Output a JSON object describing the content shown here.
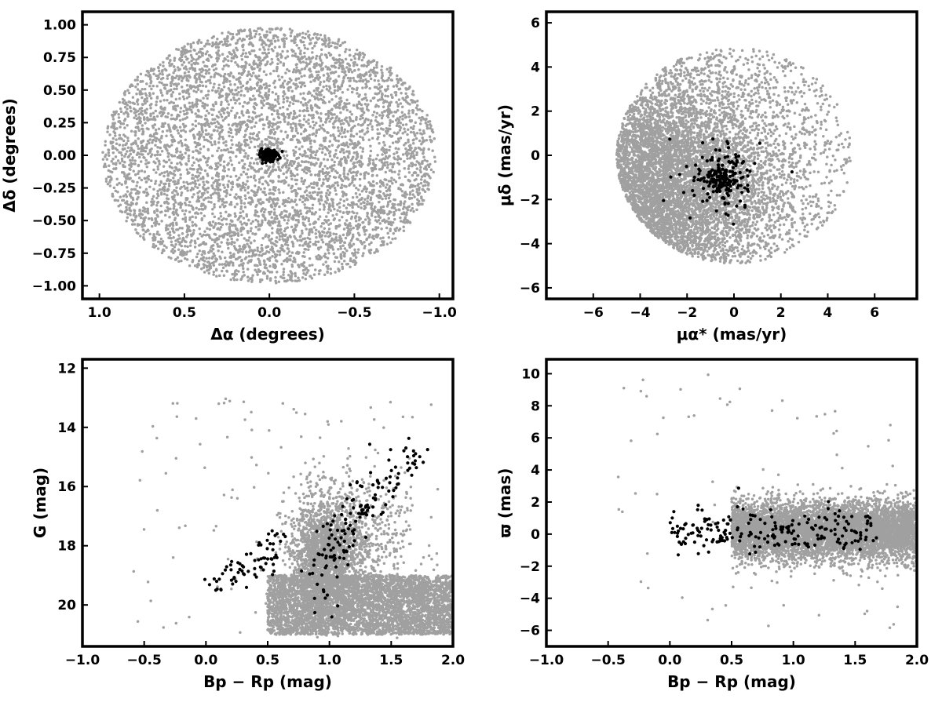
{
  "colors": {
    "field": "#a0a0a0",
    "member": "#000000",
    "frame": "#000000"
  },
  "chart_data": [
    {
      "id": "spatial",
      "type": "scatter",
      "xlabel": "Δα (degrees)",
      "ylabel": "Δδ (degrees)",
      "xlim": [
        1.1,
        -1.08
      ],
      "ylim": [
        -1.1,
        1.1
      ],
      "x_inverted": true,
      "xticks": [
        1.0,
        0.5,
        0.0,
        -0.5,
        -1.0
      ],
      "xtick_labels": [
        "1.0",
        "0.5",
        "0.0",
        "−0.5",
        "−1.0"
      ],
      "yticks": [
        -1.0,
        -0.75,
        -0.5,
        -0.25,
        0.0,
        0.25,
        0.5,
        0.75,
        1.0
      ],
      "ytick_labels": [
        "−1.00",
        "−0.75",
        "−0.50",
        "−0.25",
        "0.00",
        "0.25",
        "0.50",
        "0.75",
        "1.00"
      ],
      "series": [
        {
          "role": "field",
          "distribution": "uniform-disk",
          "center": [
            0.0,
            0.0
          ],
          "radius": [
            0.98,
            0.98
          ],
          "count": 5500
        },
        {
          "role": "member",
          "distribution": "gaussian",
          "center": [
            0.0,
            0.0
          ],
          "sigma": [
            0.025,
            0.018
          ],
          "count": 180
        }
      ]
    },
    {
      "id": "proper-motion",
      "type": "scatter",
      "xlabel": "μα* (mas/yr)",
      "ylabel": "μδ (mas/yr)",
      "xlim": [
        -8.0,
        7.8
      ],
      "ylim": [
        -6.5,
        6.5
      ],
      "xticks": [
        -6,
        -4,
        -2,
        0,
        2,
        4,
        6
      ],
      "xtick_labels": [
        "−6",
        "−4",
        "−2",
        "0",
        "2",
        "4",
        "6"
      ],
      "yticks": [
        -6,
        -4,
        -2,
        0,
        2,
        4,
        6
      ],
      "ytick_labels": [
        "−6",
        "−4",
        "−2",
        "0",
        "2",
        "4",
        "6"
      ],
      "series": [
        {
          "role": "field",
          "distribution": "skewed-disk",
          "center": [
            0.0,
            0.0
          ],
          "radius": [
            5.0,
            4.9
          ],
          "dense_center": [
            -3.5,
            -1.5
          ],
          "count": 6500
        },
        {
          "role": "member",
          "distribution": "gaussian",
          "center": [
            -0.5,
            -1.1
          ],
          "sigma": [
            0.35,
            0.35
          ],
          "count": 120
        },
        {
          "role": "member",
          "distribution": "gaussian",
          "center": [
            -0.5,
            -1.0
          ],
          "sigma": [
            0.9,
            0.9
          ],
          "count": 90
        }
      ]
    },
    {
      "id": "cmd",
      "type": "scatter",
      "xlabel": "Bp − Rp (mag)",
      "ylabel": "G (mag)",
      "xlim": [
        -1.0,
        2.0
      ],
      "ylim": [
        21.4,
        11.7
      ],
      "y_inverted": true,
      "xticks": [
        -1.0,
        -0.5,
        0.0,
        0.5,
        1.0,
        1.5,
        2.0
      ],
      "xtick_labels": [
        "−1.0",
        "−0.5",
        "0.0",
        "0.5",
        "1.0",
        "1.5",
        "2.0"
      ],
      "yticks": [
        12,
        14,
        16,
        18,
        20
      ],
      "ytick_labels": [
        "12",
        "14",
        "16",
        "18",
        "20"
      ],
      "series": [
        {
          "role": "field",
          "distribution": "band",
          "x_range": [
            0.5,
            2.0
          ],
          "y_range": [
            19.0,
            21.0
          ],
          "count": 4200
        },
        {
          "role": "field",
          "distribution": "gaussian",
          "center": [
            0.95,
            18.3
          ],
          "sigma": [
            0.13,
            1.0
          ],
          "count": 1800
        },
        {
          "role": "field",
          "distribution": "gaussian",
          "center": [
            1.25,
            18.0
          ],
          "sigma": [
            0.2,
            1.2
          ],
          "count": 600
        },
        {
          "role": "field",
          "distribution": "scatter",
          "x_range": [
            -0.6,
            1.9
          ],
          "y_range": [
            13.0,
            21.0
          ],
          "count": 120
        },
        {
          "role": "member",
          "distribution": "sequence",
          "path": [
            [
              0.0,
              19.2
            ],
            [
              0.3,
              18.9
            ],
            [
              0.5,
              18.4
            ],
            [
              0.6,
              17.7
            ]
          ],
          "spread": [
            0.06,
            0.25
          ],
          "count": 70
        },
        {
          "role": "member",
          "distribution": "sequence",
          "path": [
            [
              0.9,
              19.8
            ],
            [
              1.0,
              18.5
            ],
            [
              1.1,
              17.6
            ],
            [
              1.25,
              16.8
            ],
            [
              1.45,
              15.9
            ],
            [
              1.7,
              15.0
            ]
          ],
          "spread": [
            0.08,
            0.4
          ],
          "count": 150
        }
      ]
    },
    {
      "id": "parallax",
      "type": "scatter",
      "xlabel": "Bp − Rp (mag)",
      "ylabel": "ϖ (mas)",
      "xlim": [
        -1.0,
        2.0
      ],
      "ylim": [
        -7.0,
        10.9
      ],
      "xticks": [
        -1.0,
        -0.5,
        0.0,
        0.5,
        1.0,
        1.5,
        2.0
      ],
      "xtick_labels": [
        "−1.0",
        "−0.5",
        "0.0",
        "0.5",
        "1.0",
        "1.5",
        "2.0"
      ],
      "yticks": [
        -6,
        -4,
        -2,
        0,
        2,
        4,
        6,
        8,
        10
      ],
      "ytick_labels": [
        "−6",
        "−4",
        "−2",
        "0",
        "2",
        "4",
        "6",
        "8",
        "10"
      ],
      "series": [
        {
          "role": "field",
          "distribution": "band",
          "x_range": [
            0.5,
            2.0
          ],
          "y_center": 0.2,
          "y_sigma": 0.9,
          "count": 6000
        },
        {
          "role": "field",
          "distribution": "scatter",
          "x_range": [
            -0.5,
            1.9
          ],
          "y_range": [
            -6.0,
            10.0
          ],
          "count": 70
        },
        {
          "role": "member",
          "distribution": "band",
          "x_range": [
            0.0,
            1.7
          ],
          "y_center": 0.2,
          "y_sigma": 0.75,
          "count": 210
        }
      ]
    }
  ]
}
